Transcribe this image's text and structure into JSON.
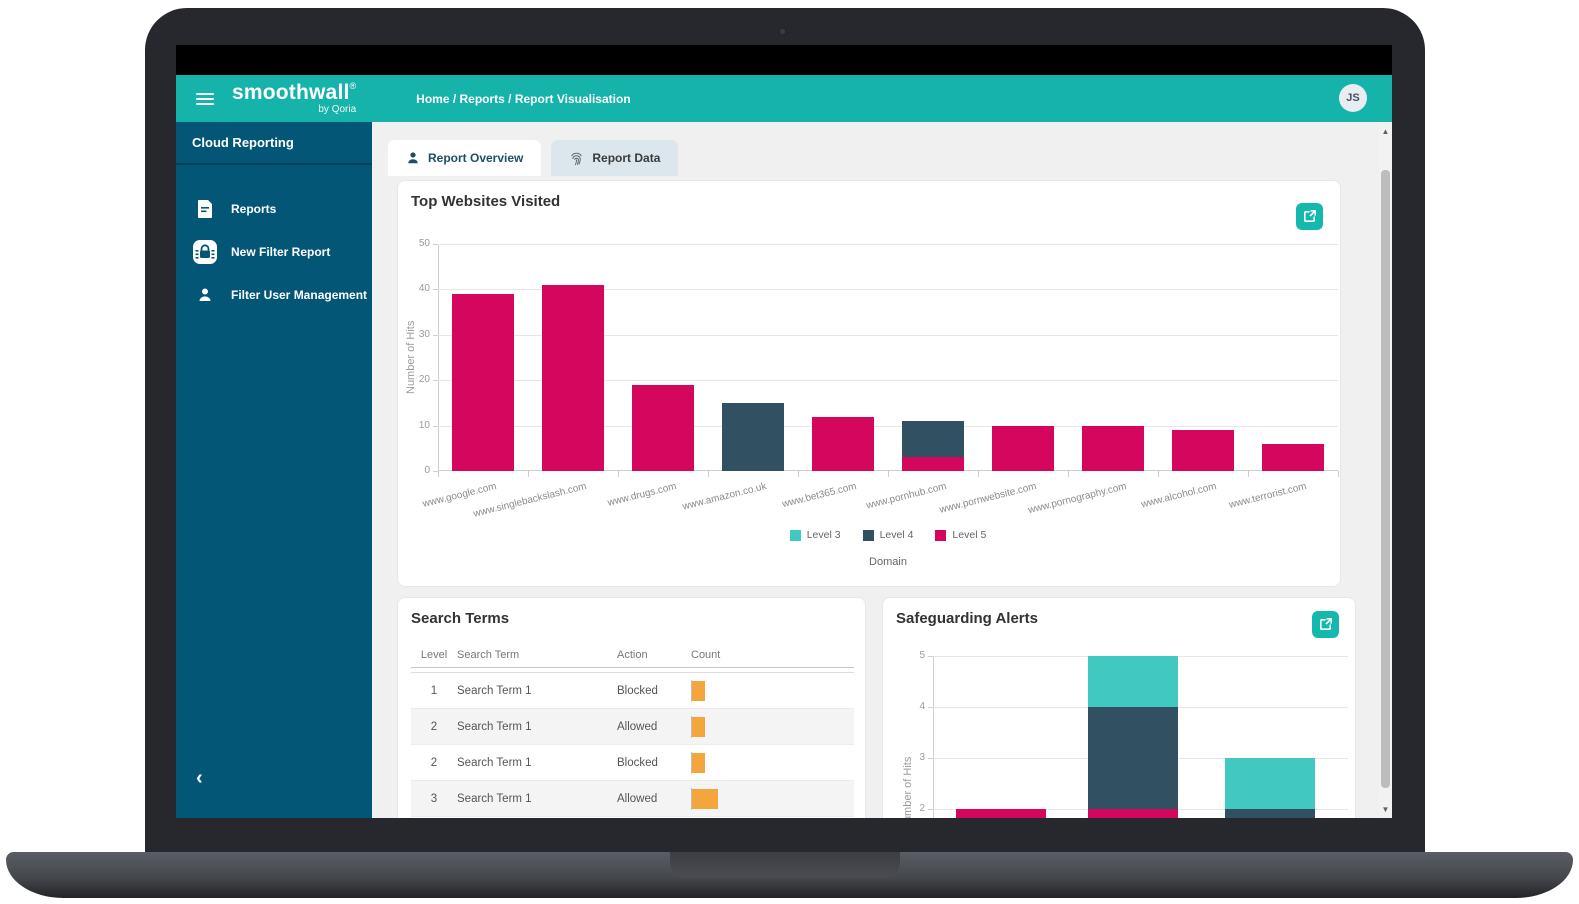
{
  "header": {
    "logo": "smoothwall",
    "logo_reg": "®",
    "logo_sub": "by Qoria",
    "breadcrumb": "Home / Reports / Report Visualisation",
    "avatar_initials": "JS"
  },
  "sidebar": {
    "title": "Cloud Reporting",
    "items": [
      {
        "label": "Reports",
        "icon": "document-icon"
      },
      {
        "label": "New Filter Report",
        "icon": "filter-report-icon"
      },
      {
        "label": "Filter User Management",
        "icon": "user-icon"
      }
    ],
    "collapse_glyph": "‹"
  },
  "tabs": [
    {
      "label": "Report Overview",
      "icon": "person-icon",
      "active": true
    },
    {
      "label": "Report Data",
      "icon": "fingerprint-icon",
      "active": false
    }
  ],
  "cards": {
    "top_websites": {
      "title": "Top Websites Visited"
    },
    "search_terms": {
      "title": "Search Terms",
      "columns": [
        "Level",
        "Search Term",
        "Action",
        "Count"
      ],
      "rows": [
        {
          "level": "1",
          "term": "Search Term 1",
          "action": "Blocked",
          "count_width": 13
        },
        {
          "level": "2",
          "term": "Search Term 1",
          "action": "Allowed",
          "count_width": 13
        },
        {
          "level": "2",
          "term": "Search Term 1",
          "action": "Blocked",
          "count_width": 13
        },
        {
          "level": "3",
          "term": "Search Term 1",
          "action": "Allowed",
          "count_width": 26
        }
      ]
    },
    "safeguarding": {
      "title": "Safeguarding Alerts"
    }
  },
  "colors": {
    "teal_header": "#16b3aa",
    "sidebar_blue": "#045677",
    "level3": "#41c9c1",
    "level4": "#315062",
    "level5": "#d5065e",
    "count_orange": "#f2a63d"
  },
  "chart_data": [
    {
      "type": "bar",
      "stacked": true,
      "title": "Top Websites Visited",
      "xlabel": "Domain",
      "ylabel": "Number of Hits",
      "ylim": [
        0,
        50
      ],
      "yticks": [
        0,
        10,
        20,
        30,
        40,
        50
      ],
      "grid": true,
      "legend_position": "bottom",
      "categories": [
        "www.google.com",
        "www.singlebackslash.com",
        "www.drugs.com",
        "www.amazon.co.uk",
        "www.bet365.com",
        "www.pornhub.com",
        "www.pornwebsite.com",
        "www.pornography.com",
        "www.alcohol.com",
        "www.terrorist.com"
      ],
      "series": [
        {
          "name": "Level 3",
          "color": "#41c9c1",
          "values": [
            0,
            0,
            0,
            0,
            0,
            0,
            0,
            0,
            0,
            0
          ]
        },
        {
          "name": "Level 4",
          "color": "#315062",
          "values": [
            0,
            0,
            0,
            15,
            0,
            8,
            0,
            0,
            0,
            0
          ]
        },
        {
          "name": "Level 5",
          "color": "#d5065e",
          "values": [
            39,
            41,
            19,
            0,
            12,
            3,
            10,
            10,
            9,
            6
          ]
        }
      ]
    },
    {
      "type": "bar",
      "stacked": true,
      "title": "Safeguarding Alerts",
      "ylabel": "Number of Hits",
      "ylim": [
        0,
        5
      ],
      "yticks_visible": [
        2,
        3,
        4,
        5
      ],
      "grid": true,
      "note": "bottom of chart cut off by viewport scroll",
      "categories": [
        "",
        "",
        ""
      ],
      "series": [
        {
          "name": "Level 3",
          "color": "#41c9c1",
          "values": [
            0,
            1,
            1
          ]
        },
        {
          "name": "Level 4",
          "color": "#315062",
          "values": [
            0,
            2,
            2
          ]
        },
        {
          "name": "Level 5",
          "color": "#d5065e",
          "values": [
            2,
            2,
            0
          ]
        }
      ]
    }
  ]
}
